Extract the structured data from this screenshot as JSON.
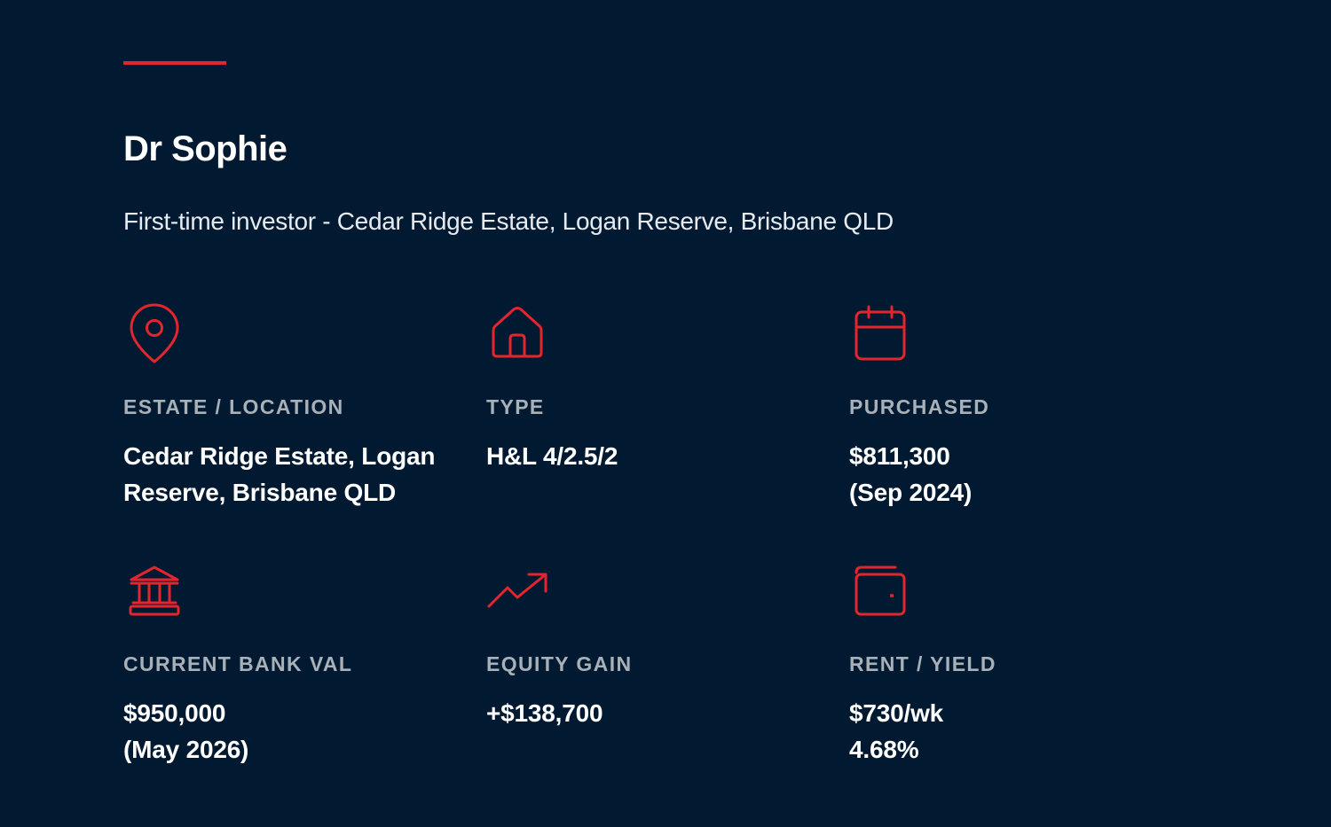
{
  "header": {
    "name": "Dr Sophie",
    "subtitle": "First-time investor - Cedar Ridge Estate, Logan Reserve, Brisbane QLD"
  },
  "accent_color": "#e4252d",
  "background_color": "#021a31",
  "cards": [
    {
      "icon": "map-pin-icon",
      "label": "ESTATE / LOCATION",
      "value_line1": "Cedar Ridge Estate, Logan",
      "value_line2": "Reserve, Brisbane QLD"
    },
    {
      "icon": "house-icon",
      "label": "TYPE",
      "value_line1": "H&L 4/2.5/2",
      "value_line2": ""
    },
    {
      "icon": "calendar-icon",
      "label": "PURCHASED",
      "value_line1": "$811,300",
      "value_line2": "(Sep 2024)"
    },
    {
      "icon": "bank-icon",
      "label": "CURRENT BANK VAL",
      "value_line1": "$950,000",
      "value_line2": "(May 2026)"
    },
    {
      "icon": "trending-up-icon",
      "label": "EQUITY GAIN",
      "value_line1": "+$138,700",
      "value_line2": ""
    },
    {
      "icon": "wallet-icon",
      "label": "RENT / YIELD",
      "value_line1": "$730/wk",
      "value_line2": "4.68%"
    }
  ]
}
